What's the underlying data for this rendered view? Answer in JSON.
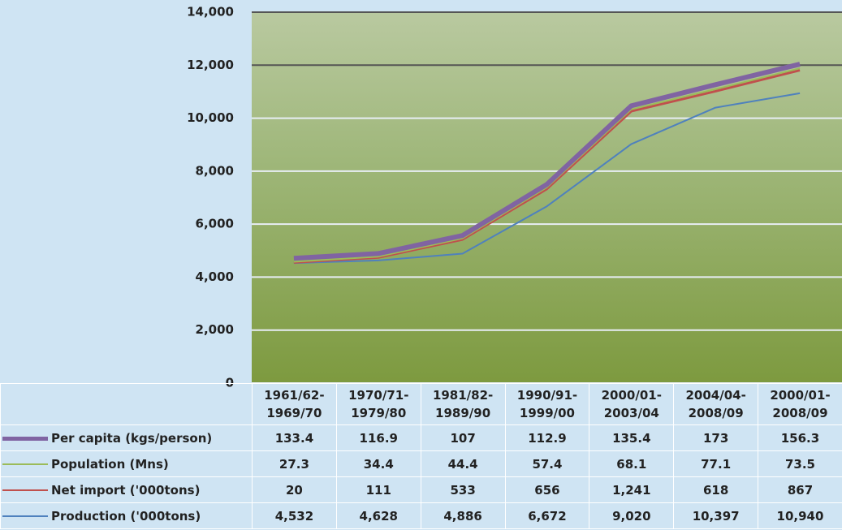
{
  "chart_data": {
    "type": "stacked-line",
    "categories": [
      "1961/62-1969/70",
      "1970/71-1979/80",
      "1981/82-1989/90",
      "1990/91-1999/00",
      "2000/01-2003/04",
      "2004/04-2008/09",
      "2000/01-2008/09"
    ],
    "series": [
      {
        "name": "Per capita (kgs/person)",
        "color": "#8064a2",
        "values": [
          133.4,
          116.9,
          107,
          112.9,
          135.4,
          173,
          156.3
        ]
      },
      {
        "name": "Population (Mns)",
        "color": "#9bbb59",
        "values": [
          27.3,
          34.4,
          44.4,
          57.4,
          68.1,
          77.1,
          73.5
        ]
      },
      {
        "name": "Net import  ('000tons)",
        "color": "#c0504d",
        "values": [
          20,
          111,
          533,
          656,
          1241,
          618,
          867
        ],
        "value_labels": [
          "20",
          "111",
          "533",
          "656",
          "1,241",
          "618",
          "867"
        ]
      },
      {
        "name": "Production  ('000tons)",
        "color": "#4f81bd",
        "values": [
          4532,
          4628,
          4886,
          6672,
          9020,
          10397,
          10940
        ],
        "value_labels": [
          "4,532",
          "4,628",
          "4,886",
          "6,672",
          "9,020",
          "10,397",
          "10,940"
        ]
      }
    ],
    "ylim": [
      0,
      14000
    ],
    "yticks": [
      0,
      {
        "value": 2000,
        "label": "2,000"
      },
      {
        "value": 4000,
        "label": "4,000"
      },
      {
        "value": 6000,
        "label": "6,000"
      },
      {
        "value": 8000,
        "label": "8,000"
      },
      {
        "value": 10000,
        "label": "10,000"
      },
      {
        "value": 12000,
        "label": "12,000"
      },
      {
        "value": 14000,
        "label": "14,000"
      }
    ],
    "grid": true
  }
}
